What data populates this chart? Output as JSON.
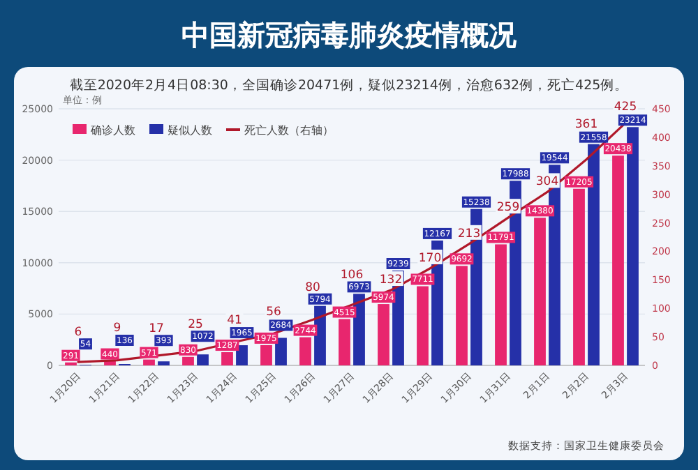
{
  "chart_data": {
    "type": "bar",
    "title": "中国新冠病毒肺炎疫情概况",
    "subtitle": "截至2020年2月4日08:30，全国确诊20471例，疑似23214例，治愈632例，死亡425例。",
    "ylabel": "单位：例",
    "categories": [
      "1月20日",
      "1月21日",
      "1月22日",
      "1月23日",
      "1月24日",
      "1月25日",
      "1月26日",
      "1月27日",
      "1月28日",
      "1月29日",
      "1月30日",
      "1月31日",
      "2月1日",
      "2月2日",
      "2月3日"
    ],
    "series": [
      {
        "name": "确诊人数",
        "color": "#e8266e",
        "values": [
          291,
          440,
          571,
          830,
          1287,
          1975,
          2744,
          4515,
          5974,
          7711,
          9692,
          11791,
          14380,
          17205,
          20438
        ]
      },
      {
        "name": "疑似人数",
        "color": "#2530a8",
        "values": [
          54,
          136,
          393,
          1072,
          1965,
          2684,
          5794,
          6973,
          9239,
          12167,
          15238,
          17988,
          19544,
          21558,
          23214
        ]
      },
      {
        "name": "死亡人数（右轴）",
        "type": "line",
        "axis": "y2",
        "color": "#b0182a",
        "values": [
          6,
          9,
          17,
          25,
          41,
          56,
          80,
          106,
          132,
          170,
          213,
          259,
          304,
          361,
          425
        ]
      }
    ],
    "ylim": [
      0,
      25000
    ],
    "yticks": [
      0,
      5000,
      10000,
      15000,
      20000,
      25000
    ],
    "y2lim": [
      0,
      450
    ],
    "y2ticks": [
      0,
      50,
      100,
      150,
      200,
      250,
      300,
      350,
      400,
      450
    ],
    "grid": "y",
    "legend": "top left",
    "data_labels": true,
    "annotations": [
      "数据支持：国家卫生健康委员会"
    ]
  }
}
